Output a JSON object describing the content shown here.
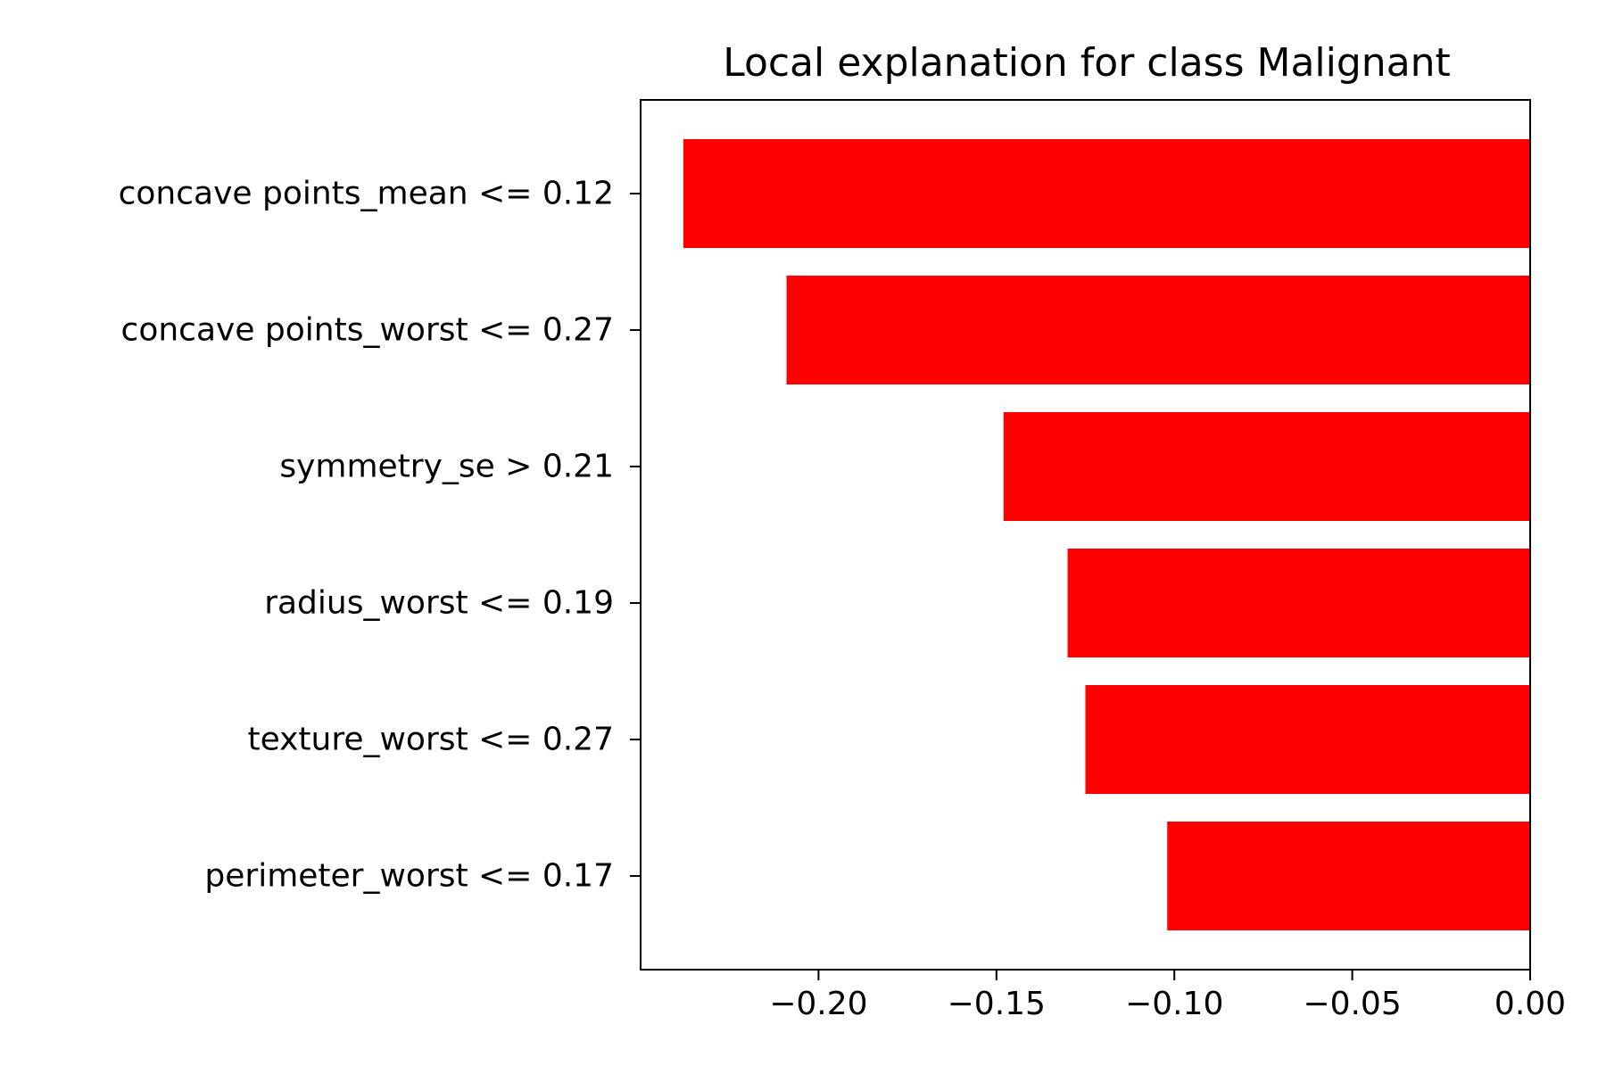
{
  "chart_data": {
    "type": "bar",
    "orientation": "horizontal",
    "title": "Local explanation for class Malignant",
    "xlabel": "",
    "ylabel": "",
    "categories": [
      "concave points_mean <= 0.12",
      "concave points_worst <= 0.27",
      "symmetry_se > 0.21",
      "radius_worst <= 0.19",
      "texture_worst <= 0.27",
      "perimeter_worst <= 0.17"
    ],
    "values": [
      -0.238,
      -0.209,
      -0.148,
      -0.13,
      -0.125,
      -0.102
    ],
    "xlim": [
      -0.25,
      0.0
    ],
    "xticks": [
      -0.2,
      -0.15,
      -0.1,
      -0.05,
      0.0
    ],
    "xtick_labels": [
      "−0.20",
      "−0.15",
      "−0.10",
      "−0.05",
      "0.00"
    ],
    "bar_color": "#ff0000",
    "grid": false,
    "legend": "none"
  }
}
